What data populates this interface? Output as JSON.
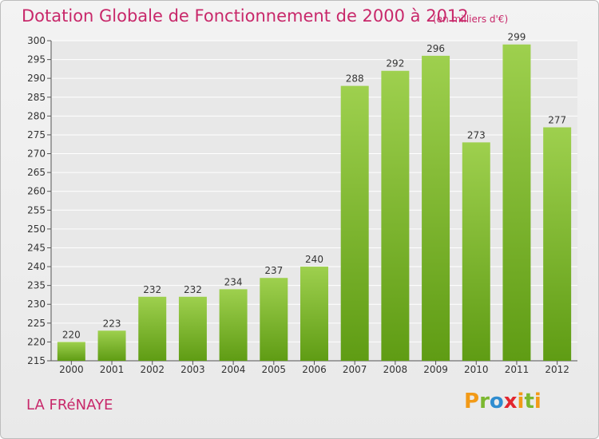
{
  "header": {
    "title": "Dotation Globale de Fonctionnement de 2000 à 2012",
    "unit": "(en milliers d'€)"
  },
  "footer": {
    "location": "LA FRéNAYE",
    "logo_text": "Proxiti"
  },
  "colors": {
    "title": "#c8286a",
    "bar_light": "#9ed04e",
    "bar_dark": "#5f9c14",
    "grid": "#ffffff",
    "background": "#eeeeee"
  },
  "chart_data": {
    "type": "bar",
    "title": "Dotation Globale de Fonctionnement de 2000 à 2012",
    "xlabel": "",
    "ylabel": "",
    "categories": [
      "2000",
      "2001",
      "2002",
      "2003",
      "2004",
      "2005",
      "2006",
      "2007",
      "2008",
      "2009",
      "2010",
      "2011",
      "2012"
    ],
    "values": [
      220,
      223,
      232,
      232,
      234,
      237,
      240,
      288,
      292,
      296,
      273,
      299,
      277
    ],
    "ylim": [
      215,
      300
    ],
    "yticks": [
      215,
      220,
      225,
      230,
      235,
      240,
      245,
      250,
      255,
      260,
      265,
      270,
      275,
      280,
      285,
      290,
      295,
      300
    ],
    "grid": true,
    "data_labels": true
  }
}
